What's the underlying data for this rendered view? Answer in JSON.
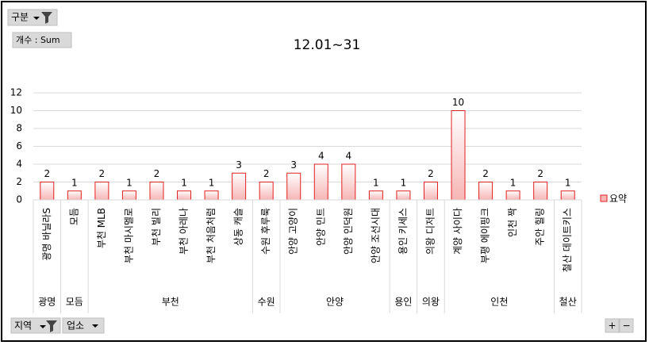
{
  "buttons": {
    "category_filter": "구분",
    "value_field": "개수 : Sum",
    "axis_fields": [
      "지역",
      "업소"
    ],
    "zoom": [
      "+",
      "−"
    ]
  },
  "chart_data": {
    "type": "bar",
    "title": "12.01~31",
    "groups": [
      {
        "label": "광명",
        "categories": [
          "광명 바닐라S"
        ]
      },
      {
        "label": "모듬",
        "categories": [
          "모듬"
        ]
      },
      {
        "label": "부천",
        "categories": [
          "부천 MLB",
          "부천 마시멜로",
          "부천 빌리",
          "부천 아레나",
          "부천 처음처럼",
          "상동 캐슬"
        ]
      },
      {
        "label": "수원",
        "categories": [
          "수원 후루룩"
        ]
      },
      {
        "label": "안양",
        "categories": [
          "안양 고양이",
          "안양 민트",
          "안양 인덕원",
          "안양 조선시대"
        ]
      },
      {
        "label": "용인",
        "categories": [
          "용인 키세스"
        ]
      },
      {
        "label": "의왕",
        "categories": [
          "의왕 디저트"
        ]
      },
      {
        "label": "인천",
        "categories": [
          "계양 사이다",
          "부평 에이핑크",
          "인천 짝",
          "주안 힐링"
        ]
      },
      {
        "label": "철산",
        "categories": [
          "철산 데이트키스"
        ]
      }
    ],
    "series": [
      {
        "name": "요약",
        "color": "#f7b5b5",
        "values": [
          2,
          1,
          2,
          1,
          2,
          1,
          1,
          3,
          2,
          3,
          4,
          4,
          1,
          1,
          2,
          10,
          2,
          1,
          2,
          1
        ]
      }
    ],
    "ylim": [
      0,
      12
    ],
    "yticks": [
      0,
      2,
      4,
      6,
      8,
      10,
      12
    ],
    "grid": true,
    "legend": "right"
  }
}
